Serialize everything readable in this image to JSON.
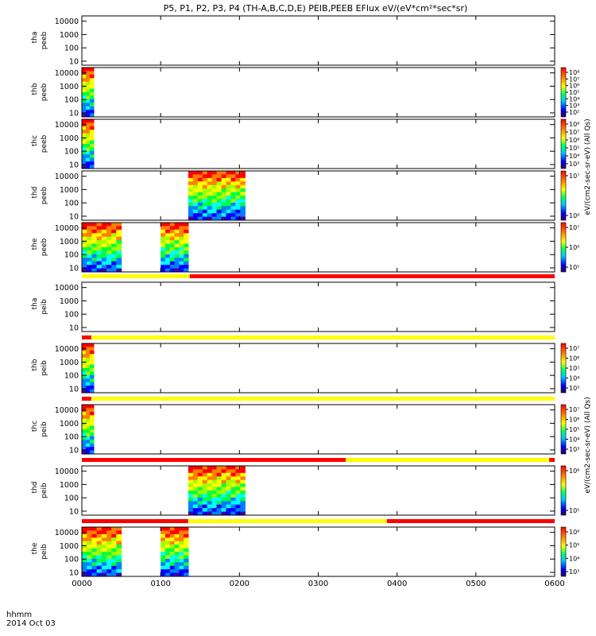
{
  "title": "P5, P1, P2, P3, P4 (TH-A,B,C,D,E) PEIB,PEEB EFlux eV/(eV*cm²*sec*sr)",
  "chart_data": {
    "type": "heatmap",
    "x_axis": {
      "label_line1": "hhmm",
      "label_line2": "2014 Oct 03",
      "ticks": [
        "0000",
        "0100",
        "0200",
        "0300",
        "0400",
        "0500",
        "0600"
      ],
      "range_hours": [
        0,
        6
      ]
    },
    "y_scale": "log",
    "y_ticks": [
      "10000",
      "1000",
      "100",
      "10"
    ],
    "y_range_ev": [
      5,
      25000
    ],
    "colorbar_label_electron": "eV/(cm2-sec-sr-eV) (All Qs)",
    "colorbar_label_ion": "eV/(cm2-sec-sr-eV) (All Qs)",
    "colors": {
      "red": "#ff0000",
      "yellow": "#ffff00",
      "frame": "#000000"
    },
    "panels": [
      {
        "probe": "tha",
        "product": "peeb",
        "data_hours": [],
        "cb": false
      },
      {
        "probe": "thb",
        "product": "peeb",
        "data_hours": [
          [
            0.0,
            0.15
          ]
        ],
        "cb": true,
        "cb_ticks": [
          "10⁸",
          "10⁷",
          "10⁶",
          "10⁵",
          "10⁴",
          "10³",
          "10²"
        ]
      },
      {
        "probe": "thc",
        "product": "peeb",
        "data_hours": [
          [
            0.0,
            0.15
          ]
        ],
        "cb": true,
        "cb_ticks": [
          "10⁸",
          "10⁷",
          "10⁶",
          "10⁵",
          "10⁴",
          "10³"
        ]
      },
      {
        "probe": "thd",
        "product": "peeb",
        "data_hours": [
          [
            1.35,
            2.07
          ]
        ],
        "cb": true,
        "cb_ticks": [
          "10⁷",
          "10⁶"
        ]
      },
      {
        "probe": "the",
        "product": "peeb",
        "data_hours": [
          [
            0.0,
            0.5
          ],
          [
            1.0,
            1.35
          ]
        ],
        "cb": true,
        "cb_ticks": [
          "10⁷",
          "10⁶",
          "10⁵"
        ]
      },
      {
        "probe": "tha",
        "product": "peib",
        "data_hours": [],
        "cb": false,
        "status_bar": [
          {
            "from": 0.0,
            "to": 1.37,
            "color": "yellow"
          },
          {
            "from": 1.37,
            "to": 6.0,
            "color": "red"
          }
        ]
      },
      {
        "probe": "thb",
        "product": "peib",
        "data_hours": [
          [
            0.0,
            0.15
          ]
        ],
        "cb": true,
        "cb_ticks": [
          "10⁷",
          "10⁶",
          "10⁵",
          "10⁴",
          "10³"
        ],
        "status_bar": [
          {
            "from": 0.0,
            "to": 0.12,
            "color": "red"
          },
          {
            "from": 0.12,
            "to": 6.0,
            "color": "yellow"
          }
        ]
      },
      {
        "probe": "thc",
        "product": "peib",
        "data_hours": [
          [
            0.0,
            0.15
          ]
        ],
        "cb": true,
        "cb_ticks": [
          "10⁷",
          "10⁶",
          "10⁵",
          "10⁴",
          "10³"
        ],
        "status_bar": [
          {
            "from": 0.0,
            "to": 0.12,
            "color": "red"
          },
          {
            "from": 0.12,
            "to": 6.0,
            "color": "yellow"
          }
        ]
      },
      {
        "probe": "thd",
        "product": "peib",
        "data_hours": [
          [
            1.35,
            2.07
          ]
        ],
        "cb": true,
        "cb_ticks": [
          "10⁶",
          "10⁵"
        ],
        "status_bar": [
          {
            "from": 0.0,
            "to": 3.35,
            "color": "red"
          },
          {
            "from": 3.35,
            "to": 5.93,
            "color": "yellow"
          },
          {
            "from": 5.93,
            "to": 6.0,
            "color": "red"
          }
        ]
      },
      {
        "probe": "the",
        "product": "peib",
        "data_hours": [
          [
            0.0,
            0.5
          ],
          [
            1.0,
            1.35
          ]
        ],
        "cb": true,
        "cb_ticks": [
          "10⁶",
          "10⁵",
          "10⁴",
          "10³"
        ],
        "status_bar": [
          {
            "from": 0.0,
            "to": 1.35,
            "color": "red"
          },
          {
            "from": 1.35,
            "to": 3.87,
            "color": "yellow"
          },
          {
            "from": 3.87,
            "to": 6.0,
            "color": "red"
          }
        ]
      }
    ]
  }
}
